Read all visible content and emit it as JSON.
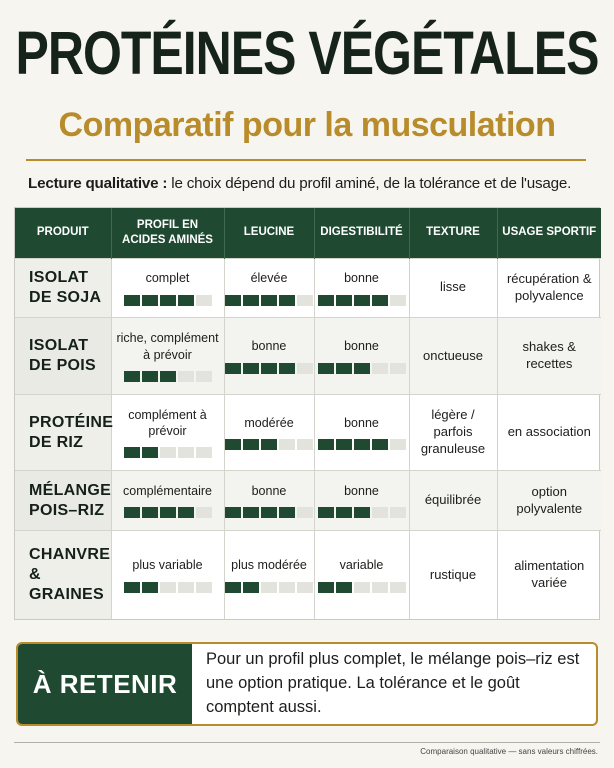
{
  "title": "PROTÉINES VÉGÉTALES",
  "subtitle": "Comparatif pour la musculation",
  "lecture": {
    "bold": "Lecture qualitative :",
    "text": " le choix dépend du profil aminé, de la tolérance et de l'usage."
  },
  "table": {
    "headers": [
      "PRODUIT",
      "PROFIL EN ACIDES AMINÉS",
      "LEUCINE",
      "DIGESTIBILITÉ",
      "TEXTURE",
      "USAGE SPORTIF"
    ],
    "rows": [
      {
        "product": "ISOLAT DE SOJA",
        "amino": {
          "label": "complet",
          "level": 4
        },
        "leucine": {
          "label": "élevée",
          "level": 4
        },
        "digest": {
          "label": "bonne",
          "level": 4
        },
        "texture": "lisse",
        "usage": "récupération & polyvalence"
      },
      {
        "product": "ISOLAT DE POIS",
        "amino": {
          "label": "riche, complément à prévoir",
          "level": 3
        },
        "leucine": {
          "label": "bonne",
          "level": 4
        },
        "digest": {
          "label": "bonne",
          "level": 3
        },
        "texture": "onctueuse",
        "usage": "shakes & recettes"
      },
      {
        "product": "PROTÉINE DE RIZ",
        "amino": {
          "label": "complément à prévoir",
          "level": 2
        },
        "leucine": {
          "label": "modérée",
          "level": 3
        },
        "digest": {
          "label": "bonne",
          "level": 4
        },
        "texture": "légère / parfois granuleuse",
        "usage": "en association"
      },
      {
        "product": "MÉLANGE POIS–RIZ",
        "amino": {
          "label": "complémentaire",
          "level": 4
        },
        "leucine": {
          "label": "bonne",
          "level": 4
        },
        "digest": {
          "label": "bonne",
          "level": 3
        },
        "texture": "équilibrée",
        "usage": "option polyvalente"
      },
      {
        "product": "CHANVRE & GRAINES",
        "amino": {
          "label": "plus variable",
          "level": 2
        },
        "leucine": {
          "label": "plus modérée",
          "level": 2
        },
        "digest": {
          "label": "variable",
          "level": 2
        },
        "texture": "rustique",
        "usage": "alimentation variée"
      }
    ],
    "bar_segments": 5
  },
  "retenir": {
    "label": "À RETENIR",
    "text": "Pour un profil plus complet, le mélange pois–riz est une option pratique. La tolérance et le goût comptent aussi."
  },
  "footnote": "Comparaison qualitative — sans valeurs chiffrées.",
  "colors": {
    "primary_green": "#1f4a31",
    "accent_gold": "#b88b2b",
    "bar_off": "#e2e3dc"
  }
}
